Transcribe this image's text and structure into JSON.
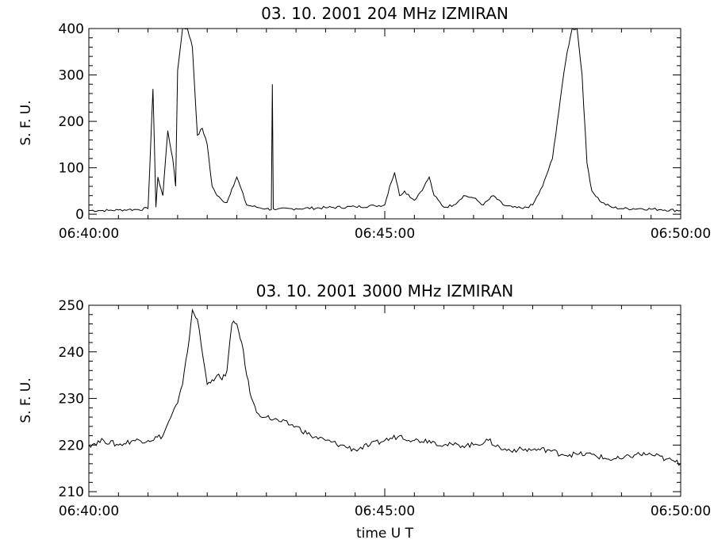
{
  "chart_data": [
    {
      "type": "line",
      "title": "03.   10.   2001    204  MHz    IZMIRAN",
      "ylabel": "S.  F.  U.",
      "xlabel": "",
      "xlim": [
        "06:40:00",
        "06:50:00"
      ],
      "ylim": [
        -10,
        400
      ],
      "x_ticks": [
        "06:40:00",
        "06:45:00",
        "06:50:00"
      ],
      "y_ticks": [
        0,
        100,
        200,
        300,
        400
      ],
      "grid": false,
      "series": [
        {
          "x": [
            "06:40:00",
            "06:40:10",
            "06:40:20",
            "06:40:30",
            "06:40:40",
            "06:40:50",
            "06:41:00",
            "06:41:05",
            "06:41:08",
            "06:41:10",
            "06:41:15",
            "06:41:20",
            "06:41:25",
            "06:41:28",
            "06:41:30",
            "06:41:35",
            "06:41:40",
            "06:41:45",
            "06:41:50",
            "06:41:55",
            "06:42:00",
            "06:42:05",
            "06:42:10",
            "06:42:15",
            "06:42:20",
            "06:42:25",
            "06:42:30",
            "06:42:40",
            "06:42:50",
            "06:43:00",
            "06:43:05",
            "06:43:06",
            "06:43:07",
            "06:43:10",
            "06:43:30",
            "06:44:00",
            "06:44:30",
            "06:44:50",
            "06:45:00",
            "06:45:05",
            "06:45:10",
            "06:45:15",
            "06:45:20",
            "06:45:30",
            "06:45:40",
            "06:45:45",
            "06:45:50",
            "06:46:00",
            "06:46:10",
            "06:46:20",
            "06:46:30",
            "06:46:40",
            "06:46:50",
            "06:47:00",
            "06:47:10",
            "06:47:20",
            "06:47:30",
            "06:47:40",
            "06:47:50",
            "06:47:55",
            "06:48:00",
            "06:48:05",
            "06:48:10",
            "06:48:15",
            "06:48:20",
            "06:48:25",
            "06:48:30",
            "06:48:40",
            "06:48:50",
            "06:49:00",
            "06:49:20",
            "06:49:40",
            "06:50:00"
          ],
          "y": [
            8,
            8,
            8,
            9,
            10,
            10,
            12,
            270,
            15,
            80,
            40,
            180,
            120,
            60,
            310,
            400,
            400,
            360,
            170,
            185,
            150,
            60,
            40,
            30,
            25,
            55,
            80,
            20,
            15,
            12,
            10,
            280,
            12,
            10,
            12,
            14,
            16,
            18,
            20,
            60,
            90,
            40,
            50,
            30,
            60,
            80,
            40,
            15,
            20,
            40,
            35,
            20,
            40,
            20,
            15,
            12,
            20,
            60,
            120,
            200,
            280,
            350,
            400,
            400,
            300,
            110,
            50,
            25,
            15,
            12,
            12,
            10,
            8
          ]
        }
      ]
    },
    {
      "type": "line",
      "title": "03.   10.   2001    3000  MHz    IZMIRAN",
      "ylabel": "S.  F.  U.",
      "xlabel": "time   U  T",
      "xlim": [
        "06:40:00",
        "06:50:00"
      ],
      "ylim": [
        209,
        250
      ],
      "x_ticks": [
        "06:40:00",
        "06:45:00",
        "06:50:00"
      ],
      "y_ticks": [
        210,
        220,
        230,
        240,
        250
      ],
      "grid": false,
      "series": [
        {
          "x": [
            "06:40:00",
            "06:40:15",
            "06:40:30",
            "06:40:45",
            "06:41:00",
            "06:41:15",
            "06:41:25",
            "06:41:30",
            "06:41:35",
            "06:41:40",
            "06:41:45",
            "06:41:50",
            "06:42:00",
            "06:42:05",
            "06:42:10",
            "06:42:15",
            "06:42:20",
            "06:42:25",
            "06:42:30",
            "06:42:35",
            "06:42:40",
            "06:42:45",
            "06:42:50",
            "06:43:00",
            "06:43:15",
            "06:43:30",
            "06:43:45",
            "06:44:00",
            "06:44:15",
            "06:44:30",
            "06:44:45",
            "06:45:00",
            "06:45:15",
            "06:45:30",
            "06:45:45",
            "06:46:00",
            "06:46:15",
            "06:46:30",
            "06:46:45",
            "06:47:00",
            "06:47:15",
            "06:47:30",
            "06:47:45",
            "06:48:00",
            "06:48:15",
            "06:48:30",
            "06:48:45",
            "06:49:00",
            "06:49:15",
            "06:49:30",
            "06:49:45",
            "06:50:00"
          ],
          "y": [
            220,
            221,
            220,
            221,
            221,
            222,
            227,
            229,
            233,
            240,
            249,
            247,
            233,
            234,
            235,
            234,
            236,
            246,
            246,
            242,
            235,
            230,
            227,
            226,
            225,
            224,
            222,
            221,
            220,
            219,
            220,
            221,
            222,
            221,
            221,
            220,
            220,
            220,
            221,
            219,
            219,
            219,
            219,
            218,
            218,
            218,
            217,
            217,
            218,
            218,
            217,
            216
          ]
        }
      ]
    }
  ]
}
